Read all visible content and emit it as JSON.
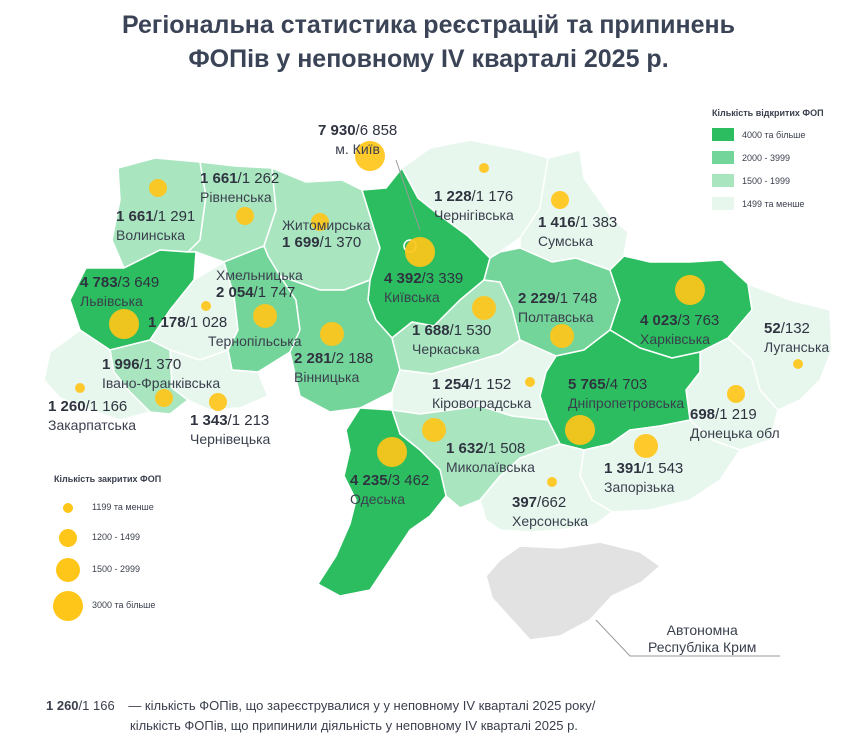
{
  "title": {
    "line1": "Регіональна статистика реєстрацій та припинень",
    "line2": "ФОПів у неповному IV кварталі 2025 р."
  },
  "colors": {
    "level4": "#2bbd5f",
    "level3": "#74d59a",
    "level2": "#a9e6c0",
    "level1": "#e8f7ee",
    "border": "#ffffff",
    "crimea": "#e2e2e2",
    "circle": "#ffc61a"
  },
  "legend_open": {
    "title": "Кількість відкритих ФОП",
    "items": [
      {
        "label": "4000 та більше",
        "color": "#2bbd5f"
      },
      {
        "label": "2000 - 3999",
        "color": "#74d59a"
      },
      {
        "label": "1500 - 1999",
        "color": "#a9e6c0"
      },
      {
        "label": "1499 та менше",
        "color": "#e8f7ee"
      }
    ]
  },
  "legend_closed": {
    "title": "Кількість закритих ФОП",
    "items": [
      {
        "label": "1199 та менше"
      },
      {
        "label": "1200 - 1499"
      },
      {
        "label": "1500 - 2999"
      },
      {
        "label": "3000 та більше"
      }
    ]
  },
  "regions": [
    {
      "id": "kyiv-city",
      "name": "м. Київ",
      "opened": "7 930",
      "closed": "/6 858",
      "level": 4,
      "closed_level": 4
    },
    {
      "id": "volynska",
      "name": "Волинська",
      "opened": "1 661",
      "closed": "/1 291",
      "level": 2,
      "closed_level": 2
    },
    {
      "id": "rivnenska",
      "name": "Рівненська",
      "opened": "1 661",
      "closed": "/1 262",
      "level": 2,
      "closed_level": 2
    },
    {
      "id": "zhytomyrska",
      "name": "Житомирська",
      "opened": "1 699",
      "closed": "/1 370",
      "level": 2,
      "closed_level": 2
    },
    {
      "id": "chernihivska",
      "name": "Чернігівська",
      "opened": "1 228",
      "closed": "/1 176",
      "level": 1,
      "closed_level": 1
    },
    {
      "id": "sumska",
      "name": "Сумська",
      "opened": "1 416",
      "closed": "/1 383",
      "level": 1,
      "closed_level": 2
    },
    {
      "id": "lvivska",
      "name": "Львівська",
      "opened": "4 783",
      "closed": "/3 649",
      "level": 4,
      "closed_level": 4
    },
    {
      "id": "khmelnytska",
      "name": "Хмельницька",
      "opened": "2 054",
      "closed": "/1 747",
      "level": 3,
      "closed_level": 3
    },
    {
      "id": "kyivska",
      "name": "Київська",
      "opened": "4 392",
      "closed": "/3 339",
      "level": 4,
      "closed_level": 4
    },
    {
      "id": "poltavska",
      "name": "Полтавська",
      "opened": "2 229",
      "closed": "/1 748",
      "level": 3,
      "closed_level": 3
    },
    {
      "id": "kharkivska",
      "name": "Харківська",
      "opened": "4 023",
      "closed": "/3 763",
      "level": 4,
      "closed_level": 4
    },
    {
      "id": "ternopilska",
      "name": "Тернопільська",
      "opened": "1 178",
      "closed": "/1 028",
      "level": 1,
      "closed_level": 1
    },
    {
      "id": "cherkaska",
      "name": "Черкаська",
      "opened": "1 688",
      "closed": "/1 530",
      "level": 2,
      "closed_level": 3
    },
    {
      "id": "luhanska",
      "name": "Луганська",
      "opened": "52",
      "closed": "/132",
      "level": 1,
      "closed_level": 1
    },
    {
      "id": "ivano-frankivska",
      "name": "Івано-Франківська",
      "opened": "1 996",
      "closed": "/1 370",
      "level": 2,
      "closed_level": 2
    },
    {
      "id": "vinnytska",
      "name": "Вінницька",
      "opened": "2 281",
      "closed": "/2 188",
      "level": 3,
      "closed_level": 3
    },
    {
      "id": "kirovohradska",
      "name": "Кіровоградська",
      "opened": "1 254",
      "closed": "/1 152",
      "level": 1,
      "closed_level": 1
    },
    {
      "id": "dnipropetrovska",
      "name": "Дніпропетровська",
      "opened": "5 765",
      "closed": "/4 703",
      "level": 4,
      "closed_level": 4
    },
    {
      "id": "zakarpatska",
      "name": "Закарпатська",
      "opened": "1 260",
      "closed": "/1 166",
      "level": 1,
      "closed_level": 1
    },
    {
      "id": "chernivetska",
      "name": "Чернівецька",
      "opened": "1 343",
      "closed": "/1 213",
      "level": 1,
      "closed_level": 2
    },
    {
      "id": "donetska",
      "name": "Донецька обл",
      "opened": "698",
      "closed": "/1 219",
      "level": 1,
      "closed_level": 2
    },
    {
      "id": "mykolaivska",
      "name": "Миколаївська",
      "opened": "1 632",
      "closed": "/1 508",
      "level": 2,
      "closed_level": 3
    },
    {
      "id": "zaporizka",
      "name": "Запорізька",
      "opened": "1 391",
      "closed": "/1 543",
      "level": 1,
      "closed_level": 3
    },
    {
      "id": "odeska",
      "name": "Одеська",
      "opened": "4 235",
      "closed": "/3 462",
      "level": 4,
      "closed_level": 4
    },
    {
      "id": "khersonska",
      "name": "Херсонська",
      "opened": "397",
      "closed": "/662",
      "level": 1,
      "closed_level": 1
    }
  ],
  "crimea": {
    "line1": "Автономна",
    "line2": "Республіка Крим"
  },
  "footer": {
    "example_opened": "1 260",
    "example_closed": "/1 166",
    "line1_text": " — кількість ФОПів, що зареєструвалися у у неповному IV кварталі 2025 року/",
    "line2_text": "кількість ФОПів, що припинили діяльність у неповному IV кварталі 2025 р."
  }
}
